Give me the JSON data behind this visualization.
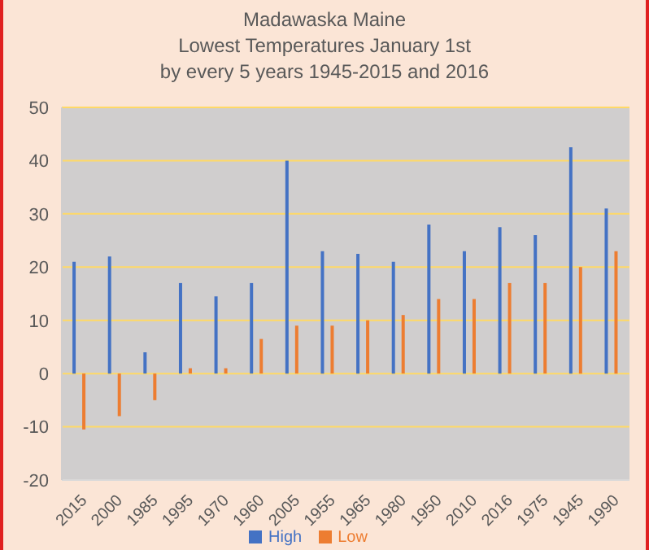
{
  "chart_data": {
    "type": "bar",
    "title": "Madawaska Maine\nLowest Temperatures January 1st\nby every 5 years 1945-2015 and 2016",
    "categories": [
      "2015",
      "2000",
      "1985",
      "1995",
      "1970",
      "1960",
      "2005",
      "1955",
      "1965",
      "1980",
      "1950",
      "2010",
      "2016",
      "1975",
      "1945",
      "1990"
    ],
    "series": [
      {
        "name": "High",
        "color": "#4472c4",
        "values": [
          21,
          22,
          4,
          17,
          14.5,
          17,
          40,
          23,
          22.5,
          21,
          28,
          23,
          27.5,
          26,
          42.5,
          31
        ]
      },
      {
        "name": "Low",
        "color": "#ed7d31",
        "values": [
          -10.5,
          -8,
          -5,
          1,
          1,
          6.5,
          9,
          9,
          10,
          11,
          14,
          14,
          17,
          17,
          20,
          23
        ]
      }
    ],
    "ylim": [
      -20,
      50
    ],
    "yticks": [
      -20,
      -10,
      0,
      10,
      20,
      30,
      40,
      50
    ],
    "grid": "y",
    "legend": "bottom"
  }
}
